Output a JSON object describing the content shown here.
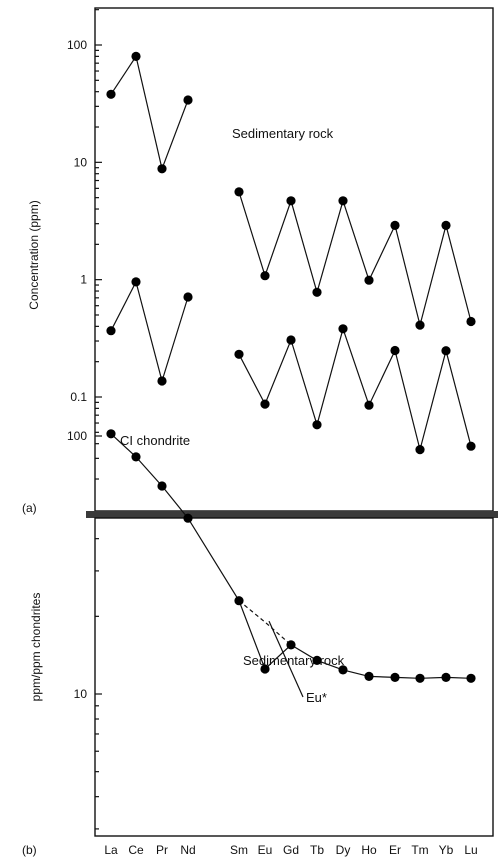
{
  "chart_data": [
    {
      "panel_label": "(a)",
      "type": "scatter",
      "yscale": "log",
      "ylim": [
        0.02,
        200
      ],
      "ylabel": "Concentration (ppm)",
      "yticks": [
        {
          "value": 100,
          "label": "100"
        },
        {
          "value": 10,
          "label": "10"
        },
        {
          "value": 1,
          "label": "1"
        },
        {
          "value": 0.1,
          "label": "0.1"
        }
      ],
      "categories": [
        "La",
        "Ce",
        "Pr",
        "Nd",
        "Sm",
        "Eu",
        "Gd",
        "Tb",
        "Dy",
        "Ho",
        "Er",
        "Tm",
        "Yb",
        "Lu"
      ],
      "series": [
        {
          "name": "Sedimentary rock",
          "values": [
            38,
            80,
            8.8,
            34,
            5.6,
            1.08,
            4.7,
            0.78,
            4.7,
            0.99,
            2.9,
            0.41,
            2.9,
            0.44
          ],
          "segments": [
            [
              0,
              3
            ],
            [
              4,
              13
            ]
          ]
        },
        {
          "name": "CI chondrite",
          "values": [
            0.367,
            0.957,
            0.137,
            0.711,
            0.231,
            0.087,
            0.306,
            0.058,
            0.381,
            0.0851,
            0.249,
            0.0356,
            0.248,
            0.0381
          ],
          "segments": [
            [
              0,
              3
            ],
            [
              4,
              13
            ]
          ]
        }
      ],
      "grid": false,
      "xticks_shown": false
    },
    {
      "panel_label": "(b)",
      "type": "line",
      "yscale": "log",
      "ylim": [
        3,
        900
      ],
      "ylabel": "ppm/ppm chondrites",
      "yticks": [
        {
          "value": 100,
          "label": "100"
        },
        {
          "value": 10,
          "label": "10"
        }
      ],
      "categories": [
        "La",
        "Ce",
        "Pr",
        "Nd",
        "Sm",
        "Eu",
        "Gd",
        "Tb",
        "Dy",
        "Ho",
        "Er",
        "Tm",
        "Yb",
        "Lu"
      ],
      "series": [
        {
          "name": "Sedimentary rock",
          "values": [
            102,
            83,
            64,
            48,
            23,
            12.5,
            15.5,
            13.5,
            12.4,
            11.7,
            11.6,
            11.5,
            11.6,
            11.5
          ]
        }
      ],
      "annotation": {
        "label": "Eu*",
        "eu_star_value": 19
      },
      "grid": false
    }
  ]
}
